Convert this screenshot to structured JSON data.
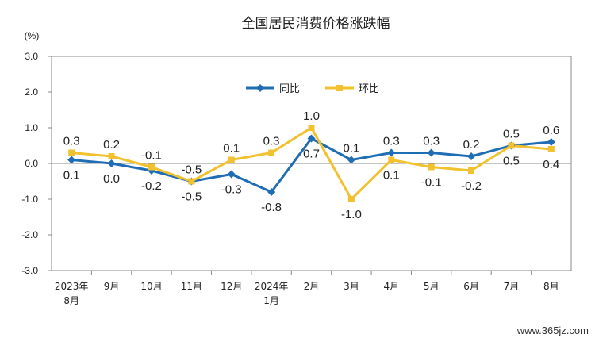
{
  "chart_data": {
    "type": "line",
    "title": "全国居民消费价格涨跌幅",
    "ylabel": "(%)",
    "ylim": [
      -3.0,
      3.0
    ],
    "yticks": [
      "3.0",
      "2.0",
      "1.0",
      "0.0",
      "-1.0",
      "-2.0",
      "-3.0"
    ],
    "categories": [
      [
        "2023年",
        "8月"
      ],
      [
        "9月"
      ],
      [
        "10月"
      ],
      [
        "11月"
      ],
      [
        "12月"
      ],
      [
        "2024年",
        "1月"
      ],
      [
        "2月"
      ],
      [
        "3月"
      ],
      [
        "4月"
      ],
      [
        "5月"
      ],
      [
        "6月"
      ],
      [
        "7月"
      ],
      [
        "8月"
      ]
    ],
    "series": [
      {
        "name": "同比",
        "color": "#1f6db5",
        "marker": "diamond",
        "values": [
          0.1,
          0.0,
          -0.2,
          -0.5,
          -0.3,
          -0.8,
          0.7,
          0.1,
          0.3,
          0.3,
          0.2,
          0.5,
          0.6
        ],
        "labels": [
          "0.1",
          "0.0",
          "-0.2",
          "-0.5",
          "-0.3",
          "-0.8",
          "0.7",
          "0.1",
          "0.3",
          "0.3",
          "0.2",
          "0.5",
          "0.6"
        ]
      },
      {
        "name": "环比",
        "color": "#f2c12e",
        "marker": "square",
        "values": [
          0.3,
          0.2,
          -0.1,
          -0.5,
          0.1,
          0.3,
          1.0,
          -1.0,
          0.1,
          -0.1,
          -0.2,
          0.5,
          0.4
        ],
        "labels": [
          "0.3",
          "0.2",
          "-0.1",
          "-0.5",
          "0.1",
          "0.3",
          "1.0",
          "-1.0",
          "0.1",
          "-0.1",
          "-0.2",
          "0.5",
          "0.4"
        ]
      }
    ],
    "legend": "top-center",
    "grid": false
  },
  "watermark": "www.365jz.com"
}
